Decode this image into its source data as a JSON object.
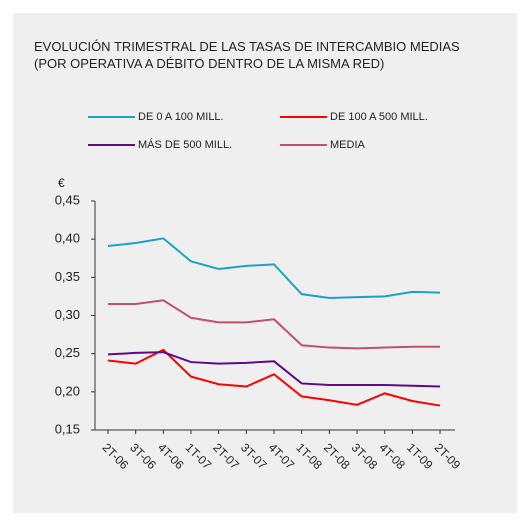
{
  "chart_data": {
    "type": "line",
    "title": "EVOLUCIÓN TRIMESTRAL DE LAS TASAS DE INTERCAMBIO MEDIAS (POR OPERATIVA A DÉBITO DENTRO DE LA MISMA RED)",
    "y_label": "€",
    "categories": [
      "2T-06",
      "3T-06",
      "4T-06",
      "1T-07",
      "2T-07",
      "3T-07",
      "4T-07",
      "1T-08",
      "2T-08",
      "3T-08",
      "4T-08",
      "1T-09",
      "2T-09"
    ],
    "series": [
      {
        "name": "DE 0 A 100 MILL.",
        "color": "#1aa3c4",
        "values": [
          0.391,
          0.395,
          0.401,
          0.371,
          0.361,
          0.365,
          0.367,
          0.328,
          0.323,
          0.324,
          0.325,
          0.331,
          0.33
        ]
      },
      {
        "name": "DE 100 A 500 MILL.",
        "color": "#ff0000",
        "values": [
          0.241,
          0.237,
          0.255,
          0.22,
          0.21,
          0.207,
          0.223,
          0.194,
          0.189,
          0.183,
          0.198,
          0.188,
          0.182
        ]
      },
      {
        "name": "MÁS DE 500 MILL.",
        "color": "#5c0a8a",
        "values": [
          0.249,
          0.251,
          0.252,
          0.239,
          0.237,
          0.238,
          0.24,
          0.211,
          0.209,
          0.209,
          0.209,
          0.208,
          0.207
        ]
      },
      {
        "name": "MEDIA",
        "color": "#c0506e",
        "values": [
          0.315,
          0.315,
          0.32,
          0.297,
          0.291,
          0.291,
          0.295,
          0.261,
          0.258,
          0.257,
          0.258,
          0.259,
          0.259
        ]
      }
    ],
    "ylim": [
      0.15,
      0.45
    ],
    "yticks": [
      {
        "value": 0.15,
        "label": "0,15"
      },
      {
        "value": 0.2,
        "label": "0,20"
      },
      {
        "value": 0.25,
        "label": "0,25"
      },
      {
        "value": 0.3,
        "label": "0,30"
      },
      {
        "value": 0.35,
        "label": "0,35"
      },
      {
        "value": 0.4,
        "label": "0,40"
      },
      {
        "value": 0.45,
        "label": "0,45"
      }
    ],
    "grid": false
  }
}
